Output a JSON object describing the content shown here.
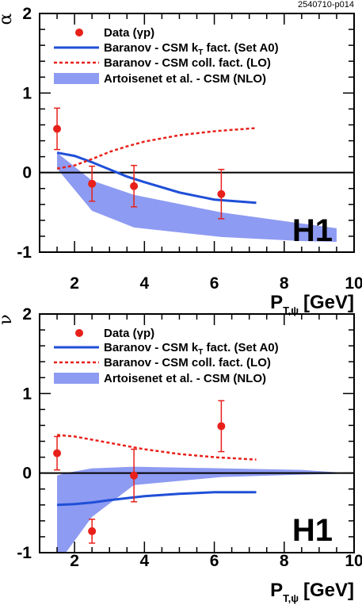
{
  "plot_id": "2540710-p014",
  "chart_data": [
    {
      "type": "scatter",
      "ylabel": "α",
      "xlabel_main": "P",
      "xlabel_sub": "T,ψ",
      "xlabel_unit": "[GeV]",
      "xlim": [
        1,
        10
      ],
      "ylim": [
        -1,
        2
      ],
      "x_ticks": [
        "2",
        "4",
        "6",
        "8",
        "10"
      ],
      "y_ticks": [
        "-1",
        "0",
        "1",
        "2"
      ],
      "experiment_label": "H1",
      "legend": [
        {
          "label": "Data (γp)",
          "kind": "marker",
          "color": "#e8201a"
        },
        {
          "label_main": "Baranov - CSM k",
          "label_sub": "T",
          "label_rest": " fact. (Set A0)",
          "kind": "solid",
          "color": "#1f4fd8"
        },
        {
          "label": "Baranov - CSM coll. fact. (LO)",
          "kind": "dashed",
          "color": "#e8201a"
        },
        {
          "label": "Artoisenet et al. - CSM (NLO)",
          "kind": "band",
          "color": "#8e9bf2"
        }
      ],
      "series": [
        {
          "name": "Data (γp)",
          "x": [
            1.5,
            2.5,
            3.7,
            6.2
          ],
          "y": [
            0.55,
            -0.14,
            -0.17,
            -0.27
          ],
          "err": [
            0.26,
            0.22,
            0.26,
            0.31
          ]
        },
        {
          "name": "Baranov - CSM k_T fact. (Set A0)",
          "x": [
            1.5,
            2,
            2.5,
            3,
            3.5,
            4,
            5,
            6,
            7.2
          ],
          "y": [
            0.25,
            0.21,
            0.13,
            0.04,
            -0.05,
            -0.12,
            -0.25,
            -0.34,
            -0.38
          ]
        },
        {
          "name": "Baranov - CSM coll. fact. (LO)",
          "x": [
            1.5,
            2,
            2.5,
            3,
            3.5,
            4,
            5,
            6,
            7.2
          ],
          "y": [
            0.05,
            0.09,
            0.17,
            0.26,
            0.33,
            0.39,
            0.47,
            0.52,
            0.56
          ]
        },
        {
          "name": "Artoisenet et al. - CSM (NLO)",
          "x": [
            1.5,
            2.5,
            3.7,
            6.2,
            8.5,
            9.5
          ],
          "upper": [
            0.25,
            -0.1,
            -0.28,
            -0.5,
            -0.64,
            -0.7
          ],
          "lower": [
            0.05,
            -0.48,
            -0.69,
            -0.81,
            -0.86,
            -0.87
          ]
        }
      ]
    },
    {
      "type": "scatter",
      "ylabel": "ν",
      "xlabel_main": "P",
      "xlabel_sub": "T,ψ",
      "xlabel_unit": "[GeV]",
      "xlim": [
        1,
        10
      ],
      "ylim": [
        -1,
        2
      ],
      "x_ticks": [
        "2",
        "4",
        "6",
        "8",
        "10"
      ],
      "y_ticks": [
        "-1",
        "0",
        "1",
        "2"
      ],
      "experiment_label": "H1",
      "legend": [
        {
          "label": "Data (γp)",
          "kind": "marker",
          "color": "#e8201a"
        },
        {
          "label_main": "Baranov - CSM k",
          "label_sub": "T",
          "label_rest": " fact. (Set A0)",
          "kind": "solid",
          "color": "#1f4fd8"
        },
        {
          "label": "Baranov - CSM coll. fact. (LO)",
          "kind": "dashed",
          "color": "#e8201a"
        },
        {
          "label": "Artoisenet et al. - CSM (NLO)",
          "kind": "band",
          "color": "#8e9bf2"
        }
      ],
      "series": [
        {
          "name": "Data (γp)",
          "x": [
            1.5,
            2.5,
            3.7,
            6.2
          ],
          "y": [
            0.25,
            -0.73,
            -0.03,
            0.59
          ],
          "err": [
            0.21,
            0.15,
            0.33,
            0.32
          ]
        },
        {
          "name": "Baranov - CSM k_T fact. (Set A0)",
          "x": [
            1.5,
            2,
            2.5,
            3,
            4,
            5,
            6,
            7.2
          ],
          "y": [
            -0.4,
            -0.39,
            -0.37,
            -0.34,
            -0.29,
            -0.26,
            -0.24,
            -0.24
          ]
        },
        {
          "name": "Baranov - CSM coll. fact. (LO)",
          "x": [
            1.5,
            2,
            2.5,
            3,
            4,
            5,
            6,
            7.2
          ],
          "y": [
            0.48,
            0.46,
            0.42,
            0.38,
            0.3,
            0.24,
            0.2,
            0.17
          ]
        },
        {
          "name": "Artoisenet et al. - CSM (NLO)",
          "x": [
            1.5,
            1.75,
            2.5,
            3.7,
            6.2,
            8.5,
            9.5
          ],
          "upper": [
            -0.03,
            0.0,
            0.06,
            0.08,
            0.06,
            0.04,
            0.01
          ],
          "lower": [
            -1.0,
            -1.0,
            -0.55,
            -0.15,
            -0.05,
            -0.02,
            -0.01
          ]
        }
      ]
    }
  ]
}
